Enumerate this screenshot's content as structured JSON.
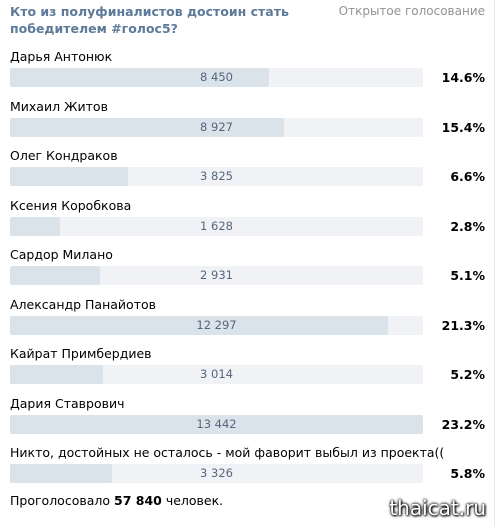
{
  "poll": {
    "title": "Кто из полуфиналистов достоин стать победителем #голос5?",
    "type_label": "Открытое голосование",
    "options": [
      {
        "label": "Дарья Антонюк",
        "count": "8 450",
        "percent": "14.6%",
        "fraction": 0.628
      },
      {
        "label": "Михаил Житов",
        "count": "8 927",
        "percent": "15.4%",
        "fraction": 0.664
      },
      {
        "label": "Олег Кондраков",
        "count": "3 825",
        "percent": "6.6%",
        "fraction": 0.285
      },
      {
        "label": "Ксения Коробкова",
        "count": "1 628",
        "percent": "2.8%",
        "fraction": 0.121
      },
      {
        "label": "Сардор Милано",
        "count": "2 931",
        "percent": "5.1%",
        "fraction": 0.218
      },
      {
        "label": "Александр Панайотов",
        "count": "12 297",
        "percent": "21.3%",
        "fraction": 0.915
      },
      {
        "label": "Кайрат Примбердиев",
        "count": "3 014",
        "percent": "5.2%",
        "fraction": 0.224
      },
      {
        "label": "Дария Ставрович",
        "count": "13 442",
        "percent": "23.2%",
        "fraction": 1.0
      },
      {
        "label": "Никто, достойных не осталось - мой фаворит выбыл из проекта((",
        "count": "3 326",
        "percent": "5.8%",
        "fraction": 0.247
      }
    ],
    "total_prefix": "Проголосовало",
    "total_votes": "57 840",
    "total_suffix": "человек."
  },
  "watermark": "thaicat.ru",
  "colors": {
    "title": "#5d7a98",
    "bar_fill": "#dae2ea",
    "bar_track": "#f0f2f5",
    "count_text": "#55677d"
  }
}
